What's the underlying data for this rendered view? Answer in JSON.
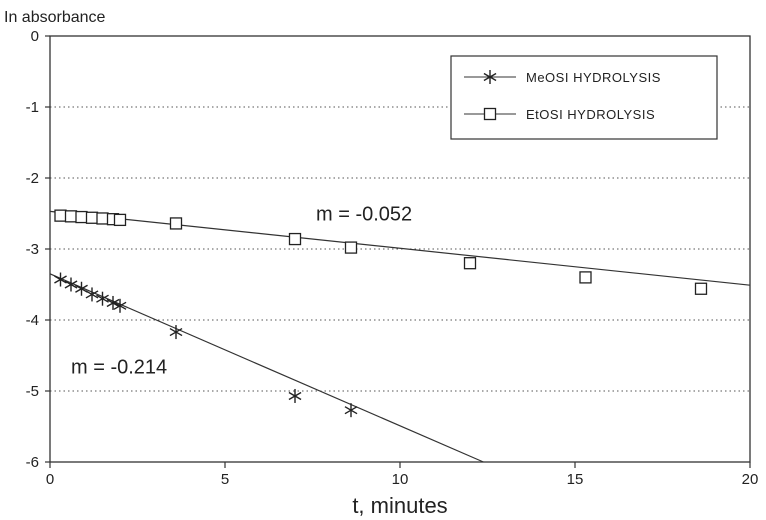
{
  "chart_data": {
    "type": "scatter",
    "ylabel": "In absorbance",
    "xlabel": "t, minutes",
    "xlim": [
      0,
      20
    ],
    "ylim": [
      -6,
      0
    ],
    "xticks": [
      0,
      5,
      10,
      15,
      20
    ],
    "yticks": [
      0,
      -1,
      -2,
      -3,
      -4,
      -5,
      -6
    ],
    "grid": "horizontal dotted",
    "legend_position": "top-right",
    "series": [
      {
        "name": "MeOSI HYDROLYSIS",
        "marker": "asterisk",
        "x": [
          0.3,
          0.6,
          0.9,
          1.2,
          1.5,
          1.8,
          2.0,
          3.6,
          7.0,
          8.6
        ],
        "y": [
          -3.43,
          -3.5,
          -3.56,
          -3.64,
          -3.7,
          -3.76,
          -3.8,
          -4.17,
          -5.07,
          -5.27
        ],
        "fit": {
          "slope": -0.214,
          "intercept": -3.35
        }
      },
      {
        "name": "EtOSI HYDROLYSIS",
        "marker": "square",
        "x": [
          0.3,
          0.6,
          0.9,
          1.2,
          1.5,
          1.8,
          2.0,
          3.6,
          7.0,
          8.6,
          12.0,
          15.3,
          18.6
        ],
        "y": [
          -2.53,
          -2.54,
          -2.55,
          -2.56,
          -2.57,
          -2.58,
          -2.59,
          -2.64,
          -2.86,
          -2.98,
          -3.2,
          -3.4,
          -3.56
        ],
        "fit": {
          "slope": -0.052,
          "intercept": -2.47
        }
      }
    ],
    "annotations": [
      {
        "text": "m = -0.052",
        "x": 7.6,
        "y": -2.6
      },
      {
        "text": "m = -0.214",
        "x": 0.6,
        "y": -4.75
      }
    ]
  }
}
